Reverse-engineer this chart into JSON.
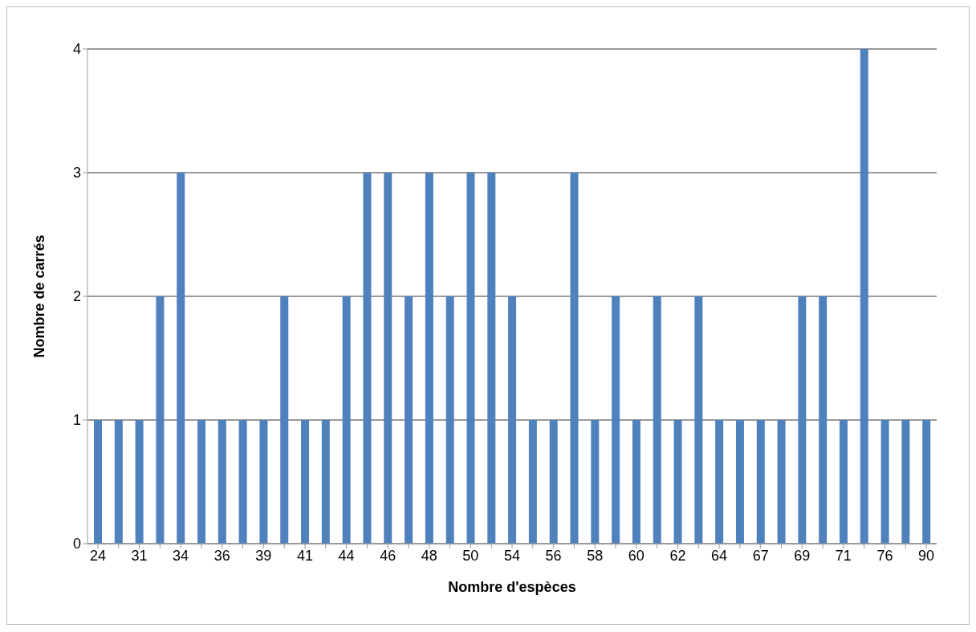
{
  "chart_data": {
    "type": "bar",
    "xlabel": "Nombre d'espèces",
    "ylabel": "Nombre de carrés",
    "categories": [
      "24",
      null,
      "31",
      null,
      "34",
      null,
      "36",
      null,
      "39",
      null,
      "41",
      null,
      "44",
      null,
      "46",
      null,
      "48",
      null,
      "50",
      null,
      "54",
      null,
      "56",
      null,
      "58",
      null,
      "60",
      null,
      "62",
      null,
      "64",
      null,
      "67",
      null,
      "69",
      null,
      "71",
      null,
      "76",
      null,
      "90"
    ],
    "values": [
      1,
      1,
      1,
      2,
      3,
      1,
      1,
      1,
      1,
      2,
      1,
      1,
      2,
      3,
      3,
      2,
      3,
      2,
      3,
      3,
      2,
      1,
      1,
      3,
      1,
      2,
      1,
      2,
      1,
      2,
      1,
      1,
      1,
      1,
      2,
      2,
      1,
      4,
      1,
      1,
      1
    ],
    "color": "#4f81bd",
    "ylim": [
      0,
      4
    ],
    "yticks": [
      0,
      1,
      2,
      3,
      4
    ],
    "grid": "y"
  }
}
